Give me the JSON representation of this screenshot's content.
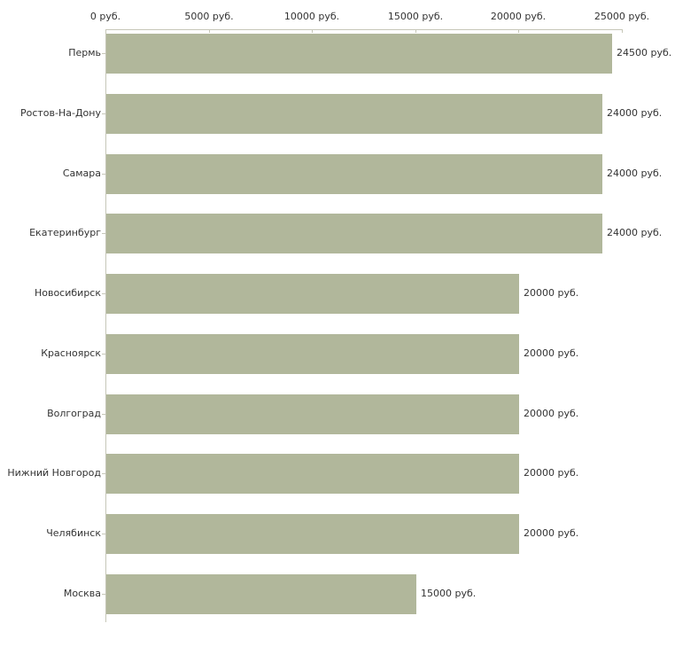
{
  "chart_data": {
    "type": "bar",
    "orientation": "horizontal",
    "title": "",
    "xlabel": "",
    "ylabel": "",
    "unit": "руб.",
    "xlim": [
      0,
      25000
    ],
    "grid": false,
    "legend": null,
    "axis_position": "top",
    "categories": [
      "Пермь",
      "Ростов-На-Дону",
      "Самара",
      "Екатеринбург",
      "Новосибирск",
      "Красноярск",
      "Волгоград",
      "Нижний Новгород",
      "Челябинск",
      "Москва"
    ],
    "values": [
      24500,
      24000,
      24000,
      24000,
      20000,
      20000,
      20000,
      20000,
      20000,
      15000
    ],
    "value_labels": [
      "24500 руб.",
      "24000 руб.",
      "24000 руб.",
      "24000 руб.",
      "20000 руб.",
      "20000 руб.",
      "20000 руб.",
      "20000 руб.",
      "20000 руб.",
      "15000 руб."
    ],
    "x_ticks": [
      0,
      5000,
      10000,
      15000,
      20000,
      25000
    ],
    "x_tick_labels": [
      "0 руб.",
      "5000 руб.",
      "10000 руб.",
      "15000 руб.",
      "20000 руб.",
      "25000 руб."
    ],
    "bar_color": "#b1b79b",
    "axis_color": "#c6c7b8",
    "text_color": "#333333",
    "background_color": "#ffffff"
  }
}
